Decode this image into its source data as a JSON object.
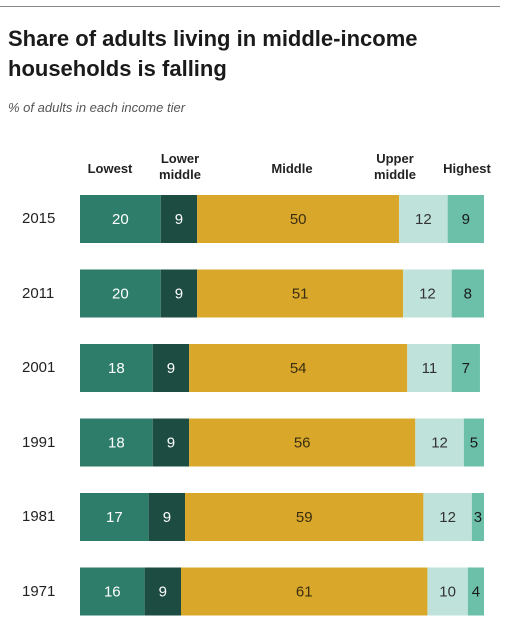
{
  "title": "Share of adults living in middle-income households is falling",
  "subtitle": "% of adults in each income tier",
  "colors": {
    "lowest": "#2e7d6a",
    "lower_middle": "#1d4d42",
    "middle": "#d9a82b",
    "upper_middle": "#bfe3db",
    "highest": "#6cbfa9"
  },
  "chart_data": {
    "type": "bar",
    "stacked": true,
    "orientation": "horizontal",
    "title": "Share of adults living in middle-income households is falling",
    "subtitle": "% of adults in each income tier",
    "categories": [
      "2015",
      "2011",
      "2001",
      "1991",
      "1981",
      "1971"
    ],
    "series": [
      {
        "name": "Lowest",
        "values": [
          20,
          20,
          18,
          18,
          17,
          16
        ]
      },
      {
        "name": "Lower middle",
        "values": [
          9,
          9,
          9,
          9,
          9,
          9
        ]
      },
      {
        "name": "Middle",
        "values": [
          50,
          51,
          54,
          56,
          59,
          61
        ]
      },
      {
        "name": "Upper middle",
        "values": [
          12,
          12,
          11,
          12,
          12,
          10
        ]
      },
      {
        "name": "Highest",
        "values": [
          9,
          8,
          7,
          5,
          3,
          4
        ]
      }
    ],
    "legend_placement": "top",
    "grid": false
  }
}
